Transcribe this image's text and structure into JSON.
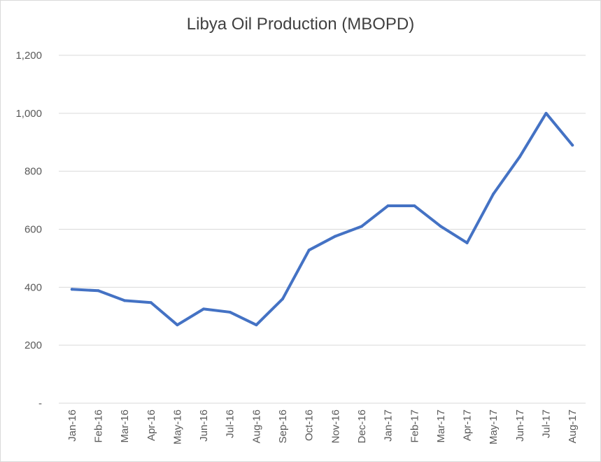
{
  "chart_data": {
    "type": "line",
    "title": "Libya Oil Production (MBOPD)",
    "xlabel": "",
    "ylabel": "",
    "categories": [
      "Jan-16",
      "Feb-16",
      "Mar-16",
      "Apr-16",
      "May-16",
      "Jun-16",
      "Jul-16",
      "Aug-16",
      "Sep-16",
      "Oct-16",
      "Nov-16",
      "Dec-16",
      "Jan-17",
      "Feb-17",
      "Mar-17",
      "Apr-17",
      "May-17",
      "Jun-17",
      "Jul-17",
      "Aug-17"
    ],
    "series": [
      {
        "values": [
          393,
          388,
          354,
          347,
          270,
          325,
          314,
          270,
          360,
          528,
          576,
          610,
          681,
          681,
          610,
          553,
          722,
          850,
          1000,
          890
        ]
      }
    ],
    "ylim": [
      0,
      1200
    ],
    "yticks": [
      0,
      200,
      400,
      600,
      800,
      1000,
      1200
    ],
    "ytick_labels": [
      "-",
      "200",
      "400",
      "600",
      "800",
      "1,000",
      "1,200"
    ],
    "grid": true,
    "legend": "none",
    "colors": {
      "line": "#4472C4",
      "grid": "#d9d9d9",
      "text": "#595959"
    }
  }
}
